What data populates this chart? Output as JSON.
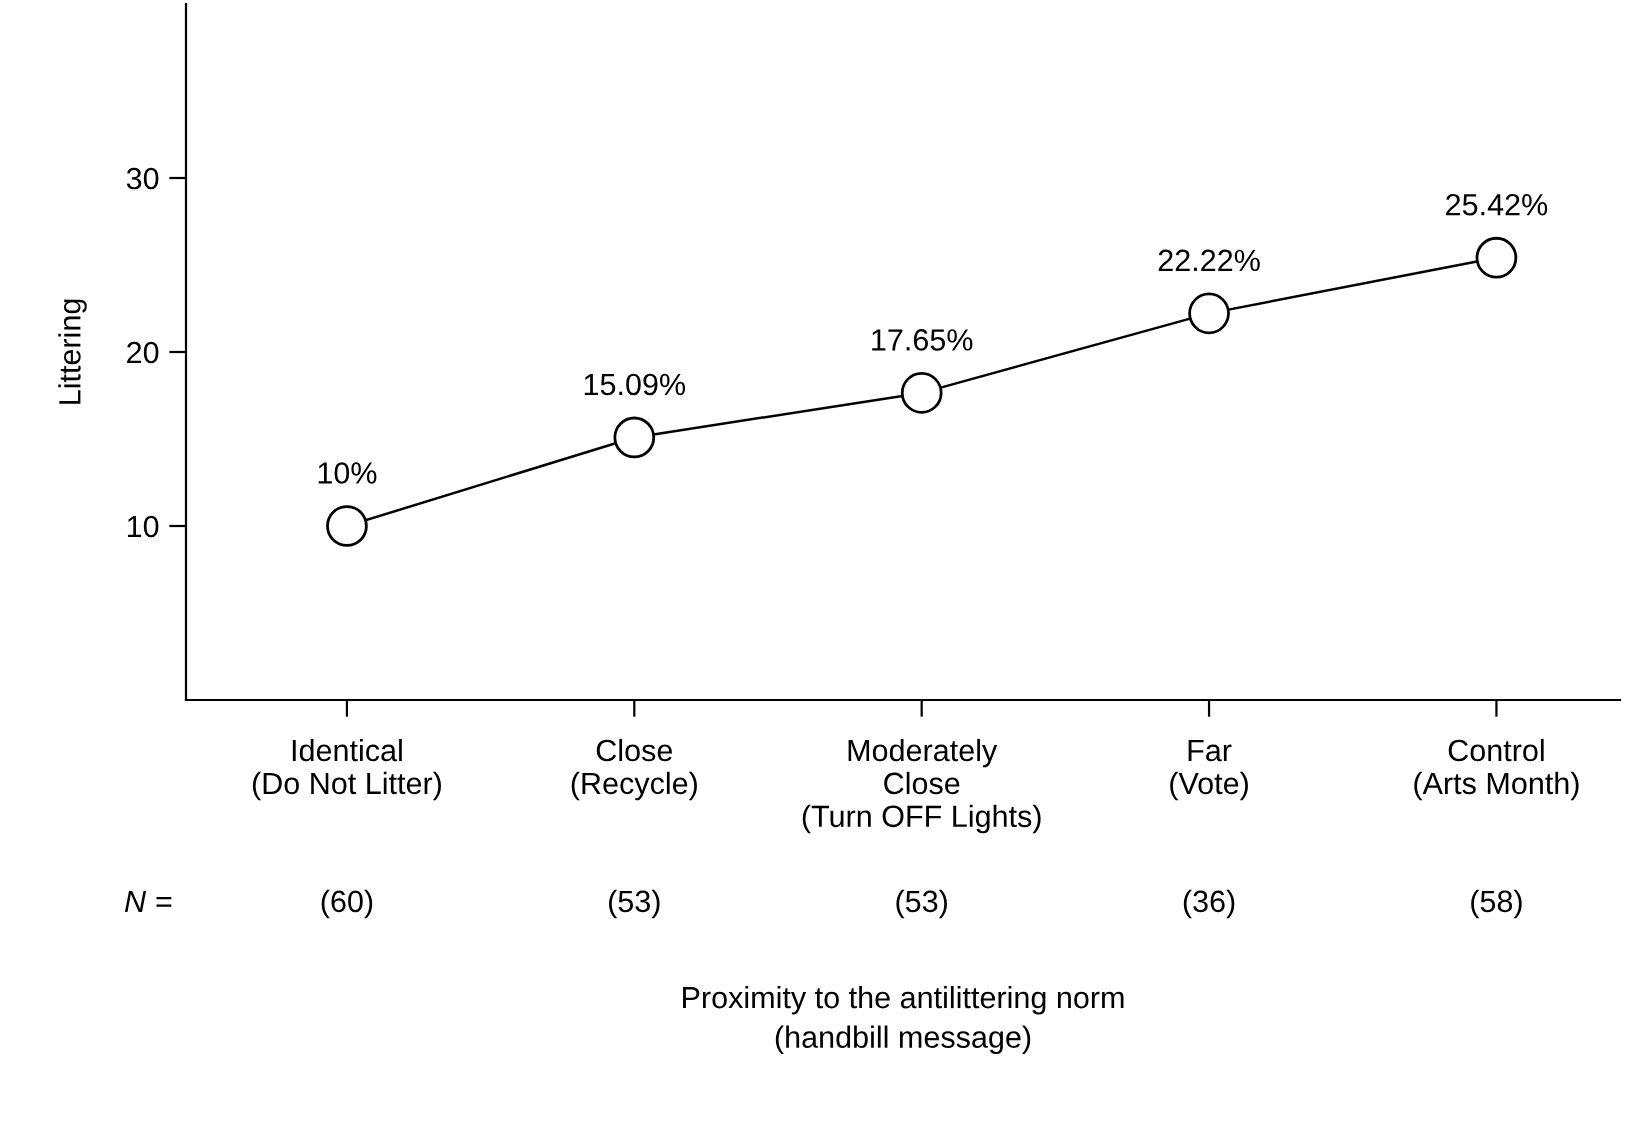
{
  "chart_data": {
    "type": "line",
    "categories": [
      "Identical\n(Do Not Litter)",
      "Close\n(Recycle)",
      "Moderately\nClose\n(Turn OFF Lights)",
      "Far\n(Vote)",
      "Control\n(Arts Month)"
    ],
    "series": [
      {
        "color": "#000000",
        "values": [
          10,
          15.09,
          17.65,
          22.22,
          25.42
        ],
        "value_labels": [
          "10%",
          "15.09%",
          "17.65%",
          "22.22%",
          "25.42%"
        ]
      }
    ],
    "ylabel": "Littering",
    "xlabel": "Proximity to the antilittering norm\n(handbill message)",
    "ylim": [
      0,
      40
    ],
    "yticks": [
      10,
      20,
      30
    ],
    "marker": "circle",
    "line_style": "solid",
    "grid": false,
    "legend": false,
    "annotations": [
      "N =",
      "(60)",
      "(53)",
      "(53)",
      "(36)",
      "(58)"
    ]
  }
}
